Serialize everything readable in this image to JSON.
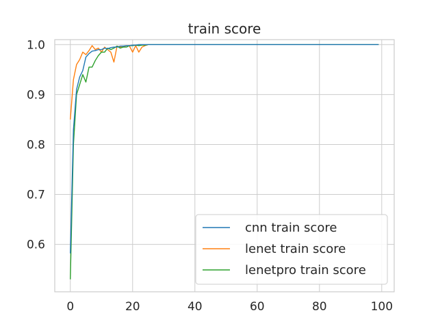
{
  "chart_data": {
    "type": "line",
    "title": "train score",
    "xlabel": "",
    "ylabel": "",
    "xlim": [
      -5,
      104
    ],
    "ylim": [
      0.505,
      1.01
    ],
    "xticks": [
      0,
      20,
      40,
      60,
      80,
      100
    ],
    "yticks": [
      0.6,
      0.7,
      0.8,
      0.9,
      1.0
    ],
    "xtick_labels": [
      "0",
      "20",
      "40",
      "60",
      "80",
      "100"
    ],
    "ytick_labels": [
      "0.6",
      "0.7",
      "0.8",
      "0.9",
      "1.0"
    ],
    "grid": true,
    "legend_position": "lower-right",
    "x": [
      0,
      1,
      2,
      3,
      4,
      5,
      6,
      7,
      8,
      9,
      10,
      11,
      12,
      13,
      14,
      15,
      16,
      17,
      18,
      19,
      20,
      21,
      22,
      23,
      24,
      25,
      26,
      27,
      28,
      29,
      30,
      31,
      32,
      33,
      34,
      35,
      36,
      37,
      38,
      39,
      40,
      41,
      42,
      43,
      44,
      45,
      46,
      47,
      48,
      49,
      50,
      51,
      52,
      53,
      54,
      55,
      56,
      57,
      58,
      59,
      60,
      61,
      62,
      63,
      64,
      65,
      66,
      67,
      68,
      69,
      70,
      71,
      72,
      73,
      74,
      75,
      76,
      77,
      78,
      79,
      80,
      81,
      82,
      83,
      84,
      85,
      86,
      87,
      88,
      89,
      90,
      91,
      92,
      93,
      94,
      95,
      96,
      97,
      98,
      99
    ],
    "series": [
      {
        "name": "cnn train score",
        "color": "#1f77b4",
        "values": [
          0.582,
          0.83,
          0.91,
          0.935,
          0.948,
          0.975,
          0.982,
          0.987,
          0.988,
          0.99,
          0.99,
          0.993,
          0.992,
          0.994,
          0.995,
          0.995,
          0.997,
          0.997,
          0.998,
          0.998,
          0.999,
          0.999,
          1.0,
          1.0,
          1.0,
          1.0,
          1.0,
          1.0,
          1.0,
          1.0,
          1.0,
          1.0,
          1.0,
          1.0,
          1.0,
          1.0,
          1.0,
          1.0,
          1.0,
          1.0,
          1.0,
          1.0,
          1.0,
          1.0,
          1.0,
          1.0,
          1.0,
          1.0,
          1.0,
          1.0,
          1.0,
          1.0,
          1.0,
          1.0,
          1.0,
          1.0,
          1.0,
          1.0,
          1.0,
          1.0,
          1.0,
          1.0,
          1.0,
          1.0,
          1.0,
          1.0,
          1.0,
          1.0,
          1.0,
          1.0,
          1.0,
          1.0,
          1.0,
          1.0,
          1.0,
          1.0,
          1.0,
          1.0,
          1.0,
          1.0,
          1.0,
          1.0,
          1.0,
          1.0,
          1.0,
          1.0,
          1.0,
          1.0,
          1.0,
          1.0,
          1.0,
          1.0,
          1.0,
          1.0,
          1.0,
          1.0,
          1.0,
          1.0,
          1.0,
          1.0
        ]
      },
      {
        "name": "lenet train score",
        "color": "#ff7f0e",
        "values": [
          0.85,
          0.93,
          0.96,
          0.97,
          0.985,
          0.98,
          0.988,
          0.998,
          0.99,
          0.993,
          0.985,
          0.995,
          0.99,
          0.985,
          0.965,
          0.997,
          0.995,
          0.995,
          0.998,
          0.997,
          0.985,
          0.998,
          0.985,
          0.995,
          0.998,
          1.0,
          1.0,
          1.0,
          1.0,
          1.0,
          1.0,
          1.0,
          1.0,
          1.0,
          1.0,
          1.0,
          1.0,
          1.0,
          1.0,
          1.0,
          1.0,
          1.0,
          1.0,
          1.0,
          1.0,
          1.0,
          1.0,
          1.0,
          1.0,
          1.0,
          1.0,
          1.0,
          1.0,
          1.0,
          1.0,
          1.0,
          1.0,
          1.0,
          1.0,
          1.0,
          1.0,
          1.0,
          1.0,
          1.0,
          1.0,
          1.0,
          1.0,
          1.0,
          1.0,
          1.0,
          1.0,
          1.0,
          1.0,
          1.0,
          1.0,
          1.0,
          1.0,
          1.0,
          1.0,
          1.0,
          1.0,
          1.0,
          1.0,
          1.0,
          1.0,
          1.0,
          1.0,
          1.0,
          1.0,
          1.0,
          1.0,
          1.0,
          1.0,
          1.0,
          1.0,
          1.0,
          1.0,
          1.0,
          1.0,
          1.0
        ]
      },
      {
        "name": "lenetpro train score",
        "color": "#2ca02c",
        "values": [
          0.53,
          0.8,
          0.9,
          0.92,
          0.94,
          0.925,
          0.955,
          0.955,
          0.968,
          0.978,
          0.985,
          0.985,
          0.993,
          0.99,
          0.993,
          0.997,
          0.993,
          0.995,
          0.995,
          0.998,
          0.998,
          0.999,
          0.998,
          0.999,
          0.999,
          1.0,
          1.0,
          1.0,
          1.0,
          1.0,
          1.0,
          1.0,
          1.0,
          1.0,
          1.0,
          1.0,
          1.0,
          1.0,
          1.0,
          1.0,
          1.0,
          1.0,
          1.0,
          1.0,
          1.0,
          1.0,
          1.0,
          1.0,
          1.0,
          1.0,
          1.0,
          1.0,
          1.0,
          1.0,
          1.0,
          1.0,
          1.0,
          1.0,
          1.0,
          1.0,
          1.0,
          1.0,
          1.0,
          1.0,
          1.0,
          1.0,
          1.0,
          1.0,
          1.0,
          1.0,
          1.0,
          1.0,
          1.0,
          1.0,
          1.0,
          1.0,
          1.0,
          1.0,
          1.0,
          1.0,
          1.0,
          1.0,
          1.0,
          1.0,
          1.0,
          1.0,
          1.0,
          1.0,
          1.0,
          1.0,
          1.0,
          1.0,
          1.0,
          1.0,
          1.0,
          1.0,
          1.0,
          1.0,
          1.0,
          1.0
        ]
      }
    ]
  },
  "colors": {
    "grid": "#cccccc",
    "spine": "#cccccc",
    "text": "#262626",
    "background": "#ffffff"
  }
}
